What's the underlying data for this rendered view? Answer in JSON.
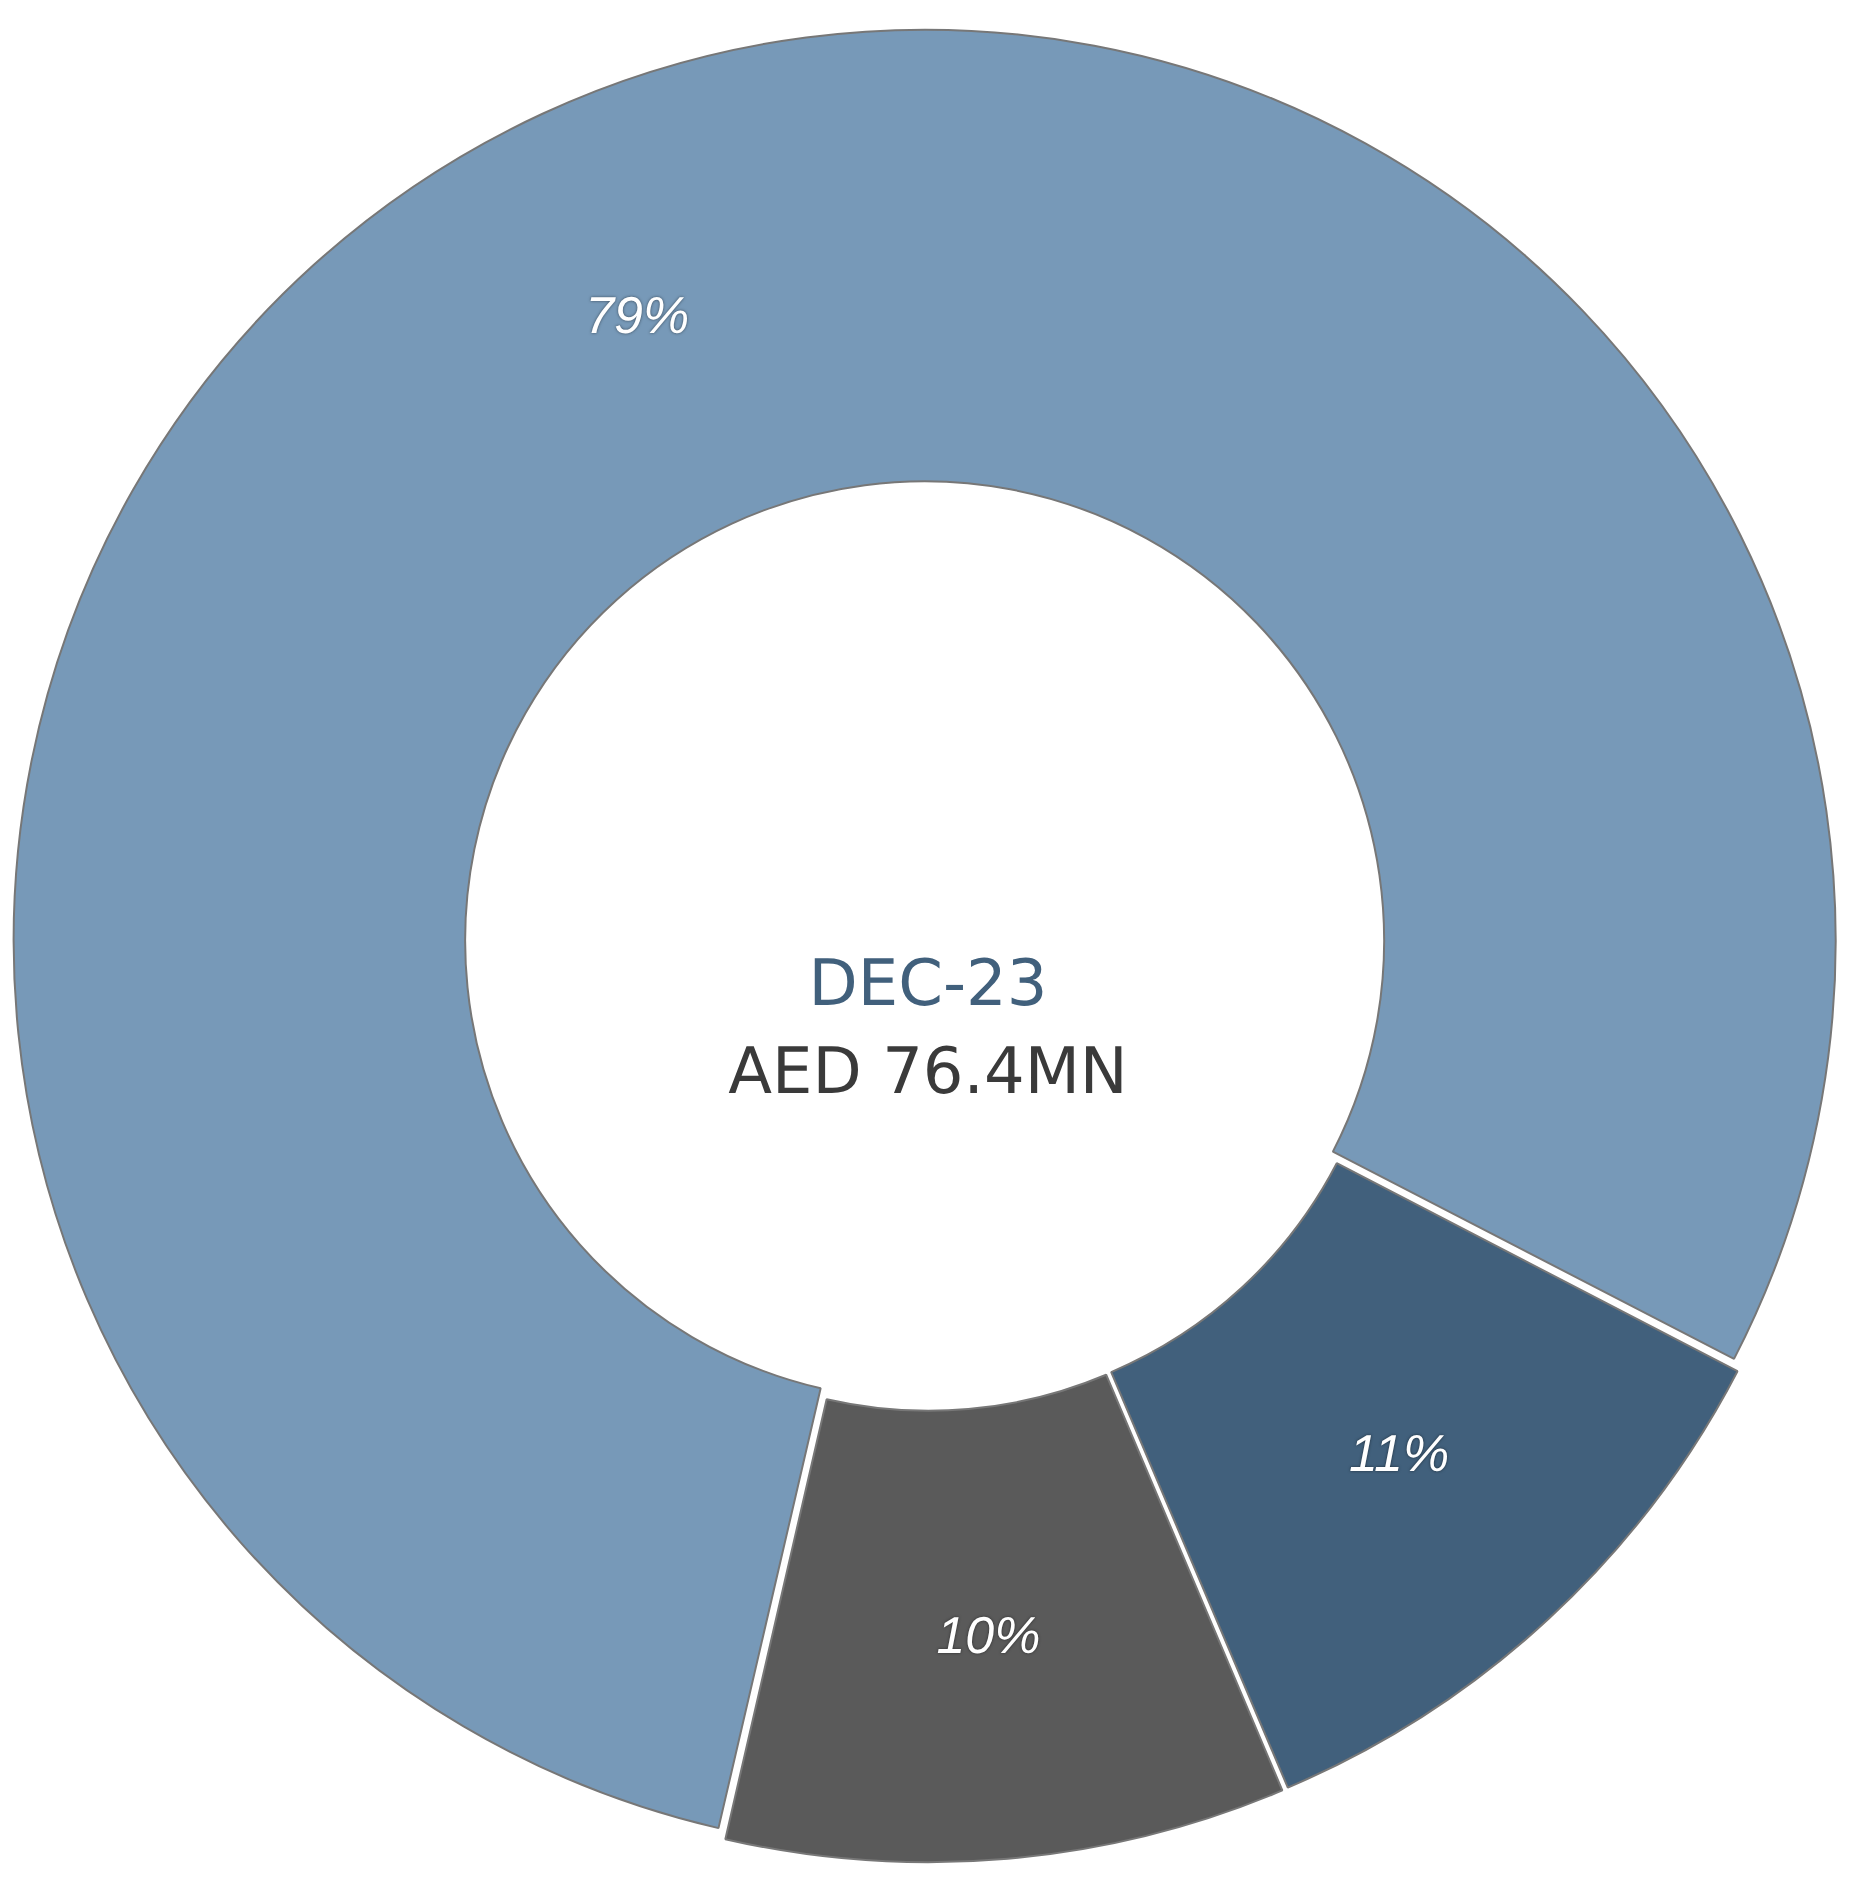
{
  "chart_data": {
    "type": "donut",
    "title": "DEC-23",
    "subtitle": "AED 76.4MN",
    "categories": [
      null,
      null,
      null
    ],
    "values": [
      79,
      11,
      10
    ],
    "colors": [
      "#7799b8",
      "#41607c",
      "#5a5a5a"
    ],
    "value_labels": [
      "79%",
      "11%",
      "10%"
    ],
    "legend": false
  }
}
